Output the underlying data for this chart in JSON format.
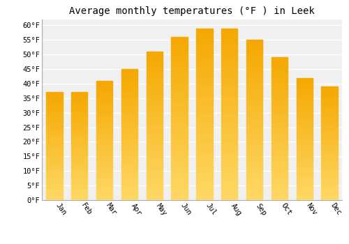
{
  "title": "Average monthly temperatures (°F ) in Leek",
  "months": [
    "Jan",
    "Feb",
    "Mar",
    "Apr",
    "May",
    "Jun",
    "Jul",
    "Aug",
    "Sep",
    "Oct",
    "Nov",
    "Dec"
  ],
  "values": [
    37,
    37,
    41,
    45,
    51,
    56,
    59,
    59,
    55,
    49,
    42,
    39
  ],
  "bar_color_top": "#F5A800",
  "bar_color_bottom": "#FFD966",
  "ylim": [
    0,
    62
  ],
  "yticks": [
    0,
    5,
    10,
    15,
    20,
    25,
    30,
    35,
    40,
    45,
    50,
    55,
    60
  ],
  "background_color": "#ffffff",
  "plot_bg_color": "#f0f0f0",
  "grid_color": "#ffffff",
  "title_fontsize": 10,
  "tick_fontsize": 7.5,
  "font_family": "monospace",
  "bar_width": 0.65
}
